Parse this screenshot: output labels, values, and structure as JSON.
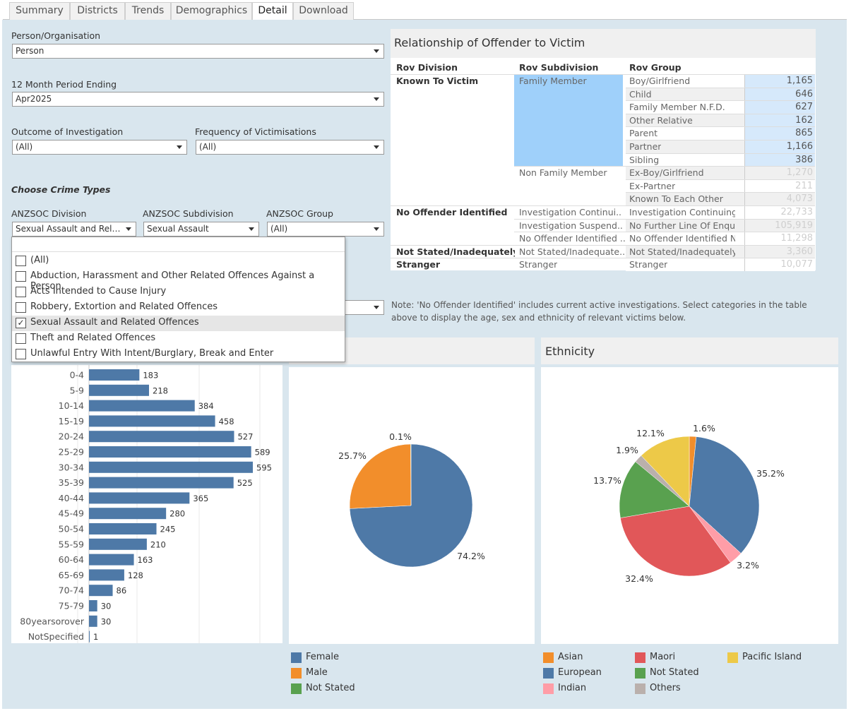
{
  "tabs": [
    "Summary",
    "Districts",
    "Trends",
    "Demographics",
    "Detail",
    "Download"
  ],
  "filters": {
    "person_org_label": "Person/Organisation",
    "person_org_value": "Person",
    "period_label": "12 Month Period Ending",
    "period_value": "Apr2025",
    "outcome_label": "Outcome of Investigation",
    "outcome_value": "(All)",
    "frequency_label": "Frequency of Victimisations",
    "frequency_value": "(All)",
    "crime_types_label": "Choose Crime Types",
    "division_label": "ANZSOC Division",
    "division_value": "Sexual Assault and Relat...",
    "subdivision_label": "ANZSOC Subdivision",
    "subdivision_value": "Sexual Assault",
    "group_label": "ANZSOC Group",
    "group_value": "(All)"
  },
  "dropdown": {
    "items": [
      {
        "label": "(All)",
        "checked": false
      },
      {
        "label": "Abduction, Harassment and Other Related Offences Against a Person",
        "checked": false
      },
      {
        "label": "Acts Intended to Cause Injury",
        "checked": false
      },
      {
        "label": "Robbery, Extortion and Related Offences",
        "checked": false
      },
      {
        "label": "Sexual Assault and Related Offences",
        "checked": true
      },
      {
        "label": "Theft and Related Offences",
        "checked": false
      },
      {
        "label": "Unlawful Entry With Intent/Burglary, Break and Enter",
        "checked": false
      }
    ]
  },
  "rov": {
    "title": "Relationship of Offender to Victim",
    "headers": [
      "Rov Division",
      "Rov Subdivision",
      "Rov Group"
    ],
    "rows": [
      {
        "div": "Known To Victim",
        "sub": "Family Member",
        "grp": "Boy/Girlfriend",
        "val": "1,165",
        "hl": true
      },
      {
        "div": "",
        "sub": "",
        "grp": "Child",
        "val": "646",
        "hl": true
      },
      {
        "div": "",
        "sub": "",
        "grp": "Family Member N.F.D.",
        "val": "627",
        "hl": true
      },
      {
        "div": "",
        "sub": "",
        "grp": "Other Relative",
        "val": "162",
        "hl": true
      },
      {
        "div": "",
        "sub": "",
        "grp": "Parent",
        "val": "865",
        "hl": true
      },
      {
        "div": "",
        "sub": "",
        "grp": "Partner",
        "val": "1,166",
        "hl": true
      },
      {
        "div": "",
        "sub": "",
        "grp": "Sibling",
        "val": "386",
        "hl": true
      },
      {
        "div": "",
        "sub": "Non Family Member",
        "grp": "Ex-Boy/Girlfriend",
        "val": "1,270",
        "hl": false
      },
      {
        "div": "",
        "sub": "",
        "grp": "Ex-Partner",
        "val": "211",
        "hl": false
      },
      {
        "div": "",
        "sub": "",
        "grp": "Known To Each Other",
        "val": "4,073",
        "hl": false
      },
      {
        "div": "No Offender Identified",
        "sub": "Investigation Continui..",
        "grp": "Investigation Continuing",
        "val": "22,733",
        "hl": false
      },
      {
        "div": "",
        "sub": "Investigation Suspend..",
        "grp": "No Further Line Of Enquiry",
        "val": "105,919",
        "hl": false
      },
      {
        "div": "",
        "sub": "No Offender Identified ..",
        "grp": "No Offender Identified N...",
        "val": "11,298",
        "hl": false
      },
      {
        "div": "Not Stated/Inadequately ..",
        "sub": "Not Stated/Inadequate..",
        "grp": "Not Stated/Inadequately ...",
        "val": "3,360",
        "hl": false
      },
      {
        "div": "Stranger",
        "sub": "Stranger",
        "grp": "Stranger",
        "val": "10,077",
        "hl": false
      }
    ]
  },
  "note": "Note: 'No Offender Identified' includes current active investigations. Select categories in the  table above to display the age, sex and ethnicity of relevant victims below.",
  "ethnicity_title": "Ethnicity",
  "colors": {
    "female": "#4e79a7",
    "male": "#f28e2b",
    "not_stated": "#59a14f",
    "asian": "#f28e2b",
    "european": "#4e79a7",
    "indian": "#ff9da7",
    "maori": "#e15759",
    "others": "#bab0ac",
    "pacific": "#edc948",
    "highlight": "#9fd0fa"
  },
  "chart_data": [
    {
      "type": "bar",
      "categories": [
        "0-4",
        "5-9",
        "10-14",
        "15-19",
        "20-24",
        "25-29",
        "30-34",
        "35-39",
        "40-44",
        "45-49",
        "50-54",
        "55-59",
        "60-64",
        "65-69",
        "70-74",
        "75-79",
        "80yearsorover",
        "NotSpecified"
      ],
      "values": [
        183,
        218,
        384,
        458,
        527,
        589,
        595,
        525,
        365,
        280,
        245,
        210,
        163,
        128,
        86,
        30,
        30,
        1
      ]
    },
    {
      "type": "pie",
      "labels": [
        "Female",
        "Male",
        "Not Stated"
      ],
      "values": [
        74.2,
        25.7,
        0.1
      ],
      "value_labels": [
        "74.2%",
        "25.7%",
        "0.1%"
      ]
    },
    {
      "type": "pie",
      "title": "Ethnicity",
      "labels": [
        "Asian",
        "European",
        "Indian",
        "Maori",
        "Not Stated",
        "Others",
        "Pacific Island"
      ],
      "values": [
        1.6,
        35.2,
        3.2,
        32.4,
        13.7,
        1.9,
        12.1
      ],
      "value_labels": [
        "1.6%",
        "35.2%",
        "3.2%",
        "32.4%",
        "13.7%",
        "1.9%",
        "12.1%"
      ]
    }
  ],
  "sex_legend": [
    "Female",
    "Male",
    "Not Stated"
  ],
  "eth_legend": [
    "Asian",
    "European",
    "Indian",
    "Maori",
    "Not Stated",
    "Others",
    "Pacific Island"
  ]
}
